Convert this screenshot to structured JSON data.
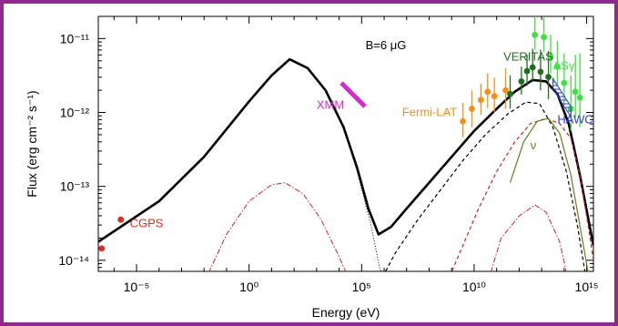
{
  "chart_data": {
    "type": "scatter",
    "annotation": "B=6 μG",
    "xlabel": "Energy (eV)",
    "ylabel": "Flux (erg cm⁻² s⁻¹)",
    "x_scale": "log",
    "y_scale": "log",
    "xlim_log10": [
      -6.7,
      15.3
    ],
    "ylim_log10": [
      -14.15,
      -10.7
    ],
    "x_ticks": [
      {
        "log10": -5,
        "label": "10⁻⁵"
      },
      {
        "log10": 0,
        "label": "10⁰"
      },
      {
        "log10": 5,
        "label": "10⁵"
      },
      {
        "log10": 10,
        "label": "10¹⁰"
      },
      {
        "log10": 15,
        "label": "10¹⁵"
      }
    ],
    "y_ticks": [
      {
        "log10": -14,
        "label": "10⁻¹⁴"
      },
      {
        "log10": -13,
        "label": "10⁻¹³"
      },
      {
        "log10": -12,
        "label": "10⁻¹²"
      },
      {
        "log10": -11,
        "label": "10⁻¹¹"
      }
    ],
    "model_curves": [
      {
        "id": "total",
        "color": "#000000",
        "dash": "",
        "width": 2.6,
        "points": [
          [
            -6.7,
            -13.75
          ],
          [
            -4,
            -13.2
          ],
          [
            -2,
            -12.6
          ],
          [
            0,
            -11.85
          ],
          [
            1,
            -11.5
          ],
          [
            1.8,
            -11.28
          ],
          [
            2.6,
            -11.4
          ],
          [
            3.4,
            -11.7
          ],
          [
            4.2,
            -12.2
          ],
          [
            4.8,
            -12.75
          ],
          [
            5.3,
            -13.3
          ],
          [
            5.75,
            -13.65
          ],
          [
            6.3,
            -13.55
          ],
          [
            7,
            -13.3
          ],
          [
            8,
            -12.95
          ],
          [
            9,
            -12.6
          ],
          [
            10,
            -12.25
          ],
          [
            11,
            -11.95
          ],
          [
            11.8,
            -11.72
          ],
          [
            12.6,
            -11.56
          ],
          [
            13.2,
            -11.58
          ],
          [
            13.7,
            -11.75
          ],
          [
            14.2,
            -12.15
          ],
          [
            14.7,
            -12.85
          ],
          [
            15.3,
            -13.8
          ]
        ]
      },
      {
        "id": "synchrotron-cutoff",
        "color": "#000000",
        "dash": "1,2",
        "width": 1,
        "points": [
          [
            4.2,
            -12.2
          ],
          [
            4.8,
            -12.8
          ],
          [
            5.4,
            -13.5
          ],
          [
            5.8,
            -14.1
          ],
          [
            6.05,
            -14.3
          ]
        ]
      },
      {
        "id": "ic-component",
        "color": "#000000",
        "dash": "4,3",
        "width": 1.2,
        "points": [
          [
            5.8,
            -14.3
          ],
          [
            6.5,
            -13.9
          ],
          [
            7.5,
            -13.45
          ],
          [
            8.5,
            -13.05
          ],
          [
            9.5,
            -12.65
          ],
          [
            10.5,
            -12.3
          ],
          [
            11.5,
            -12.02
          ],
          [
            12.3,
            -11.86
          ],
          [
            12.9,
            -11.88
          ],
          [
            13.5,
            -12.2
          ],
          [
            14.1,
            -12.8
          ],
          [
            14.6,
            -13.55
          ],
          [
            15,
            -14.3
          ]
        ]
      },
      {
        "id": "secondary-sync",
        "color": "#cc2222",
        "dash": "6,2,1.5,2",
        "width": 1,
        "points": [
          [
            -2,
            -14.3
          ],
          [
            -1,
            -13.65
          ],
          [
            0,
            -13.2
          ],
          [
            1,
            -12.98
          ],
          [
            1.6,
            -12.95
          ],
          [
            2.4,
            -13.1
          ],
          [
            3.2,
            -13.45
          ],
          [
            4,
            -13.95
          ],
          [
            4.5,
            -14.3
          ]
        ]
      },
      {
        "id": "secondary-ic",
        "color": "#cc2222",
        "dash": "6,2,1.5,2",
        "width": 1,
        "points": [
          [
            10.6,
            -14.3
          ],
          [
            11.2,
            -13.7
          ],
          [
            12,
            -13.4
          ],
          [
            12.7,
            -13.25
          ],
          [
            13.2,
            -13.35
          ],
          [
            13.8,
            -13.75
          ],
          [
            14.2,
            -14.3
          ]
        ]
      },
      {
        "id": "secondary-ic-dashed",
        "color": "#cc2222",
        "dash": "4,3",
        "width": 1.2,
        "points": [
          [
            8.8,
            -14.3
          ],
          [
            9.5,
            -13.8
          ],
          [
            10.2,
            -13.3
          ],
          [
            11,
            -12.8
          ],
          [
            11.8,
            -12.4
          ],
          [
            12.5,
            -12.15
          ],
          [
            13.2,
            -12.08
          ],
          [
            13.8,
            -12.15
          ],
          [
            14.3,
            -12.35
          ],
          [
            14.7,
            -12.85
          ],
          [
            15.1,
            -13.6
          ],
          [
            15.3,
            -14.0
          ]
        ]
      },
      {
        "id": "pion-decay",
        "color": "#6b7d1a",
        "dash": "",
        "width": 1.2,
        "points": [
          [
            11.6,
            -12.95
          ],
          [
            12.2,
            -12.4
          ],
          [
            12.8,
            -12.12
          ],
          [
            13.3,
            -12.08
          ],
          [
            13.8,
            -12.28
          ],
          [
            14.3,
            -12.85
          ],
          [
            14.8,
            -13.7
          ],
          [
            15.2,
            -14.4
          ]
        ]
      }
    ],
    "data_series": [
      {
        "name": "CGPS",
        "color": "#dd2a2a",
        "points": [
          [
            -6.55,
            -13.84
          ],
          [
            -5.7,
            -13.45
          ]
        ],
        "errors": []
      },
      {
        "name": "XMM",
        "color": "#d52bd5",
        "band": [
          [
            4.1,
            -11.6
          ],
          [
            5.15,
            -11.92
          ]
        ]
      },
      {
        "name": "Fermi-LAT",
        "color": "#f39019",
        "points": [
          [
            9.5,
            -12.12
          ],
          [
            9.9,
            -11.95
          ],
          [
            10.3,
            -11.83
          ],
          [
            10.6,
            -11.72
          ],
          [
            10.9,
            -11.78
          ],
          [
            11.4,
            -11.7
          ]
        ],
        "err": [
          [
            0.22,
            0.25
          ],
          [
            0.25,
            0.25
          ],
          [
            0.2,
            0.22
          ],
          [
            0.22,
            0.25
          ],
          [
            0.22,
            0.25
          ],
          [
            0.25,
            0.3
          ]
        ]
      },
      {
        "name": "VERITAS",
        "color": "#1f6e1f",
        "points": [
          [
            11.6,
            -11.75
          ],
          [
            12.1,
            -11.58
          ],
          [
            12.35,
            -11.44
          ],
          [
            12.6,
            -11.39
          ],
          [
            12.95,
            -11.45
          ],
          [
            13.3,
            -11.52
          ]
        ],
        "err": [
          [
            0.2,
            0.25
          ],
          [
            0.18,
            0.2
          ],
          [
            0.2,
            0.22
          ],
          [
            0.2,
            0.25
          ],
          [
            0.25,
            0.3
          ],
          [
            0.3,
            0.35
          ]
        ]
      },
      {
        "name": "ASγ",
        "color": "#40e040",
        "points": [
          [
            12.7,
            -10.95
          ],
          [
            13.1,
            -10.98
          ],
          [
            13.4,
            -11.25
          ],
          [
            13.7,
            -11.38
          ],
          [
            14.0,
            -11.6
          ],
          [
            14.3,
            -11.95
          ],
          [
            14.5,
            -11.72
          ],
          [
            14.7,
            -11.8
          ]
        ],
        "err": [
          [
            0.2,
            0.35
          ],
          [
            0.2,
            0.3
          ],
          [
            0.22,
            0.3
          ],
          [
            0.25,
            0.35
          ],
          [
            0.3,
            0.4
          ],
          [
            0.3,
            0.45
          ],
          [
            0.35,
            0.5
          ],
          [
            0.4,
            0.6
          ]
        ]
      },
      {
        "name": "HAWC",
        "color": "#2a3ec8",
        "band": [
          [
            13.5,
            -11.62
          ],
          [
            14.3,
            -12.0
          ]
        ]
      }
    ],
    "labels": [
      {
        "text": "CGPS",
        "color": "#dd2a2a",
        "at": [
          -5.3,
          -13.55
        ]
      },
      {
        "text": "XMM",
        "color": "#d52bd5",
        "at": [
          3.0,
          -11.95
        ]
      },
      {
        "text": "Fermi-LAT",
        "color": "#f39019",
        "at": [
          6.8,
          -12.05
        ]
      },
      {
        "text": "VERITAS",
        "color": "#1f6e1f",
        "at": [
          11.3,
          -11.3
        ]
      },
      {
        "text": "ASγ",
        "color": "#40e040",
        "at": [
          13.5,
          -11.42
        ]
      },
      {
        "text": "HAWC",
        "color": "#2a3ec8",
        "at": [
          13.7,
          -12.15
        ]
      },
      {
        "text": "ν",
        "color": "#6b7d1a",
        "at": [
          12.5,
          -12.5
        ]
      }
    ]
  }
}
